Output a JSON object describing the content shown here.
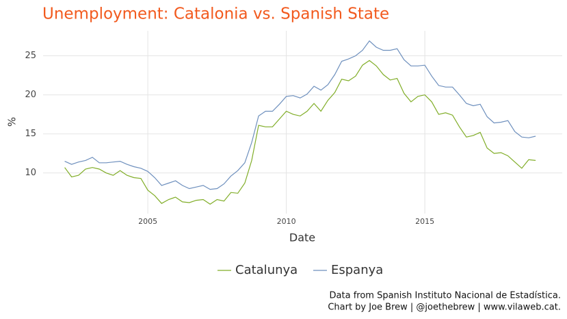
{
  "chart_data": {
    "type": "line",
    "title": "Unemployment: Catalonia vs. Spanish State",
    "xlabel": "Date",
    "ylabel": "%",
    "caption": [
      "Data from Spanish Instituto Nacional de Estadística.",
      "Chart by Joe Brew | @joethebrew | www.vilaweb.cat."
    ],
    "x": [
      2002,
      2002.25,
      2002.5,
      2002.75,
      2003,
      2003.25,
      2003.5,
      2003.75,
      2004,
      2004.25,
      2004.5,
      2004.75,
      2005,
      2005.25,
      2005.5,
      2005.75,
      2006,
      2006.25,
      2006.5,
      2006.75,
      2007,
      2007.25,
      2007.5,
      2007.75,
      2008,
      2008.25,
      2008.5,
      2008.75,
      2009,
      2009.25,
      2009.5,
      2009.75,
      2010,
      2010.25,
      2010.5,
      2010.75,
      2011,
      2011.25,
      2011.5,
      2011.75,
      2012,
      2012.25,
      2012.5,
      2012.75,
      2013,
      2013.25,
      2013.5,
      2013.75,
      2014,
      2014.25,
      2014.5,
      2014.75,
      2015,
      2015.25,
      2015.5,
      2015.75,
      2016,
      2016.25,
      2016.5,
      2016.75,
      2017,
      2017.25,
      2017.5,
      2017.75,
      2018,
      2018.25,
      2018.5,
      2018.75,
      2019
    ],
    "series": [
      {
        "name": "Catalunya",
        "color": "#80ad27",
        "values": [
          10.7,
          9.5,
          9.7,
          10.5,
          10.7,
          10.5,
          10.0,
          9.7,
          10.3,
          9.7,
          9.4,
          9.3,
          7.8,
          7.1,
          6.1,
          6.6,
          6.9,
          6.3,
          6.2,
          6.5,
          6.6,
          6.0,
          6.6,
          6.4,
          7.5,
          7.4,
          8.7,
          11.6,
          16.1,
          15.9,
          15.9,
          16.9,
          17.9,
          17.5,
          17.3,
          17.9,
          18.9,
          17.9,
          19.3,
          20.3,
          22.0,
          21.8,
          22.4,
          23.8,
          24.4,
          23.7,
          22.6,
          21.9,
          22.1,
          20.2,
          19.1,
          19.8,
          20.0,
          19.1,
          17.5,
          17.7,
          17.4,
          15.9,
          14.6,
          14.8,
          15.2,
          13.2,
          12.5,
          12.6,
          12.2,
          11.4,
          10.6,
          11.7,
          11.6
        ]
      },
      {
        "name": "Espanya",
        "color": "#6d8fbd",
        "values": [
          11.5,
          11.1,
          11.4,
          11.6,
          12.0,
          11.3,
          11.3,
          11.4,
          11.5,
          11.1,
          10.8,
          10.6,
          10.2,
          9.4,
          8.4,
          8.7,
          9.0,
          8.4,
          8.0,
          8.2,
          8.4,
          7.9,
          8.0,
          8.6,
          9.6,
          10.3,
          11.3,
          13.9,
          17.3,
          17.9,
          17.9,
          18.8,
          19.8,
          19.9,
          19.6,
          20.1,
          21.1,
          20.6,
          21.3,
          22.6,
          24.3,
          24.6,
          25.0,
          25.7,
          26.9,
          26.1,
          25.7,
          25.7,
          25.9,
          24.5,
          23.7,
          23.7,
          23.8,
          22.4,
          21.2,
          21.0,
          21.0,
          20.0,
          18.9,
          18.6,
          18.8,
          17.2,
          16.4,
          16.5,
          16.7,
          15.3,
          14.6,
          14.5,
          14.7
        ]
      }
    ],
    "xlim": [
      2001.22,
      2019.96
    ],
    "ylim": [
      4.8,
      28.2
    ],
    "xticks": [
      2005,
      2010,
      2015
    ],
    "yticks": [
      10,
      15,
      20,
      25
    ],
    "grid": true,
    "legend": "bottom"
  }
}
